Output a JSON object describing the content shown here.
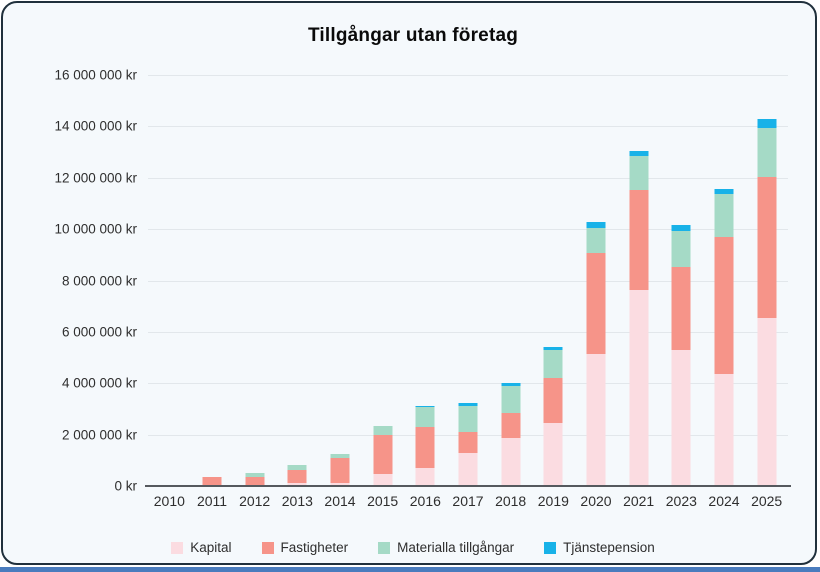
{
  "page": {
    "card_background": "#f5f9fc",
    "card_border_color": "#20303c",
    "bottom_strip_color": "#4a7cbe",
    "gridline_color": "#e2e7eb",
    "axis_color": "#55595e"
  },
  "chart_data": {
    "type": "bar",
    "stacked": true,
    "title": "Tillgångar utan företag",
    "xlabel": "",
    "ylabel": "",
    "ylim": [
      0,
      16000000
    ],
    "grid": true,
    "legend_position": "bottom",
    "y_axis": {
      "ticks": [
        {
          "value": 0,
          "label": "0 kr"
        },
        {
          "value": 2000000,
          "label": "2 000 000 kr"
        },
        {
          "value": 4000000,
          "label": "4 000 000 kr"
        },
        {
          "value": 6000000,
          "label": "6 000 000 kr"
        },
        {
          "value": 8000000,
          "label": "8 000 000 kr"
        },
        {
          "value": 10000000,
          "label": "10 000 000 kr"
        },
        {
          "value": 12000000,
          "label": "12 000 000 kr"
        },
        {
          "value": 14000000,
          "label": "14 000 000 kr"
        },
        {
          "value": 16000000,
          "label": "16 000 000 kr"
        }
      ]
    },
    "categories": [
      "2010",
      "2011",
      "2012",
      "2013",
      "2014",
      "2015",
      "2016",
      "2017",
      "2018",
      "2019",
      "2020",
      "2021",
      "2023",
      "2024",
      "2025"
    ],
    "series": [
      {
        "name": "Kapital",
        "color": "#fbdce1",
        "values": [
          20000,
          0,
          0,
          120000,
          130000,
          460000,
          690000,
          1280000,
          1860000,
          2470000,
          5150000,
          7640000,
          5300000,
          4360000,
          6540000
        ]
      },
      {
        "name": "Fastigheter",
        "color": "#f69489",
        "values": [
          0,
          370000,
          360000,
          500000,
          950000,
          1530000,
          1600000,
          820000,
          980000,
          1730000,
          3930000,
          3900000,
          3220000,
          5330000,
          5500000
        ]
      },
      {
        "name": "Materialla tillgångar",
        "color": "#a5dac6",
        "values": [
          0,
          0,
          150000,
          190000,
          170000,
          350000,
          770000,
          1030000,
          1040000,
          1080000,
          950000,
          1300000,
          1390000,
          1660000,
          1910000
        ]
      },
      {
        "name": "Tjänstepension",
        "color": "#18b2e8",
        "values": [
          0,
          0,
          0,
          0,
          0,
          0,
          30000,
          100000,
          130000,
          120000,
          260000,
          220000,
          260000,
          230000,
          340000
        ]
      }
    ]
  }
}
